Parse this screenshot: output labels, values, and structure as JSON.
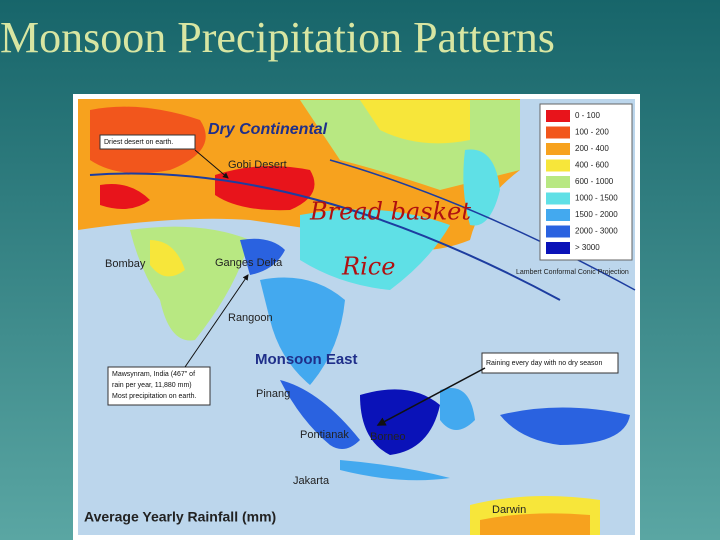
{
  "title": "Monsoon Precipitation Patterns",
  "map": {
    "caption": "Average Yearly Rainfall (mm)",
    "projection": "Lambert Conformal Conic Projection",
    "labels": {
      "dry_continental": "Dry Continental",
      "gobi": "Gobi Desert",
      "bombay": "Bombay",
      "ganges": "Ganges Delta",
      "rangoon": "Rangoon",
      "monsoon_east": "Monsoon East",
      "pinang": "Pinang",
      "pontianak": "Pontianak",
      "borneo": "Borneo",
      "jakarta": "Jakarta",
      "darwin": "Darwin"
    },
    "notes": {
      "driest": "Driest desert on earth.",
      "mawsynram": [
        "Mawsynram, India (467\" of",
        "rain per year, 11,880 mm)",
        "Most precipitation on earth."
      ],
      "raining": "Raining every day with no dry season"
    },
    "handwriting": {
      "bread_basket": "Bread basket",
      "rice": "Rice"
    },
    "legend": [
      {
        "label": "0 - 100",
        "color": "#e8141b"
      },
      {
        "label": "100 - 200",
        "color": "#f2561c"
      },
      {
        "label": "200 - 400",
        "color": "#f7a21e"
      },
      {
        "label": "400 - 600",
        "color": "#f7e63a"
      },
      {
        "label": "600 - 1000",
        "color": "#b8e882"
      },
      {
        "label": "1000 - 1500",
        "color": "#5fe0e6"
      },
      {
        "label": "1500 - 2000",
        "color": "#43a9ef"
      },
      {
        "label": "2000 - 3000",
        "color": "#2a62e0"
      },
      {
        "label": "> 3000",
        "color": "#0a12b8"
      }
    ]
  }
}
